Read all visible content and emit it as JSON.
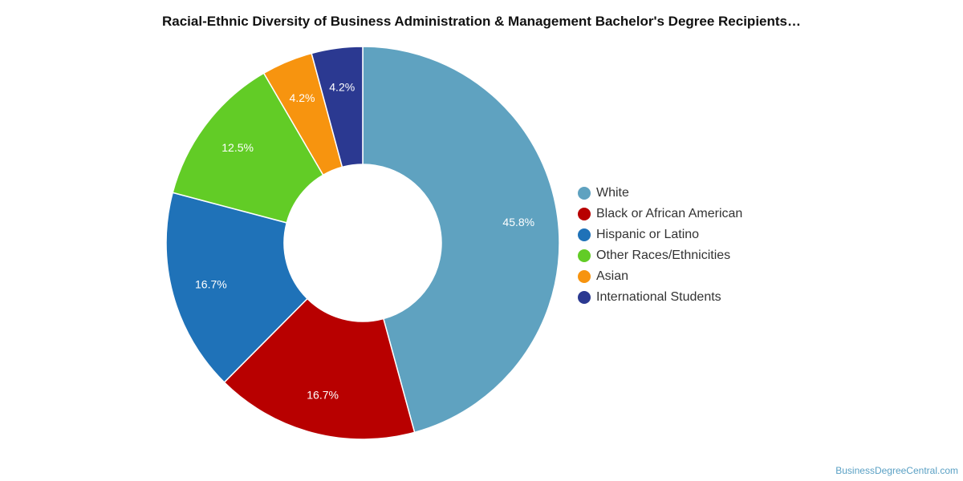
{
  "chart_data": {
    "type": "pie",
    "title": "Racial-Ethnic Diversity of Business Administration & Management Bachelor's Degree Recipients…",
    "categories": [
      "White",
      "Black or African American",
      "Hispanic or Latino",
      "Other Races/Ethnicities",
      "Asian",
      "International Students"
    ],
    "values": [
      45.8,
      16.7,
      16.7,
      12.5,
      4.2,
      4.2
    ],
    "value_labels": [
      "45.8%",
      "16.7%",
      "16.7%",
      "12.5%",
      "4.2%",
      "4.2%"
    ],
    "colors": [
      "#5fa2c0",
      "#b80000",
      "#1f72b8",
      "#62cc26",
      "#f7940f",
      "#2b3991"
    ],
    "donut": true,
    "legend_position": "right"
  },
  "watermark": "BusinessDegreeCentral.com"
}
